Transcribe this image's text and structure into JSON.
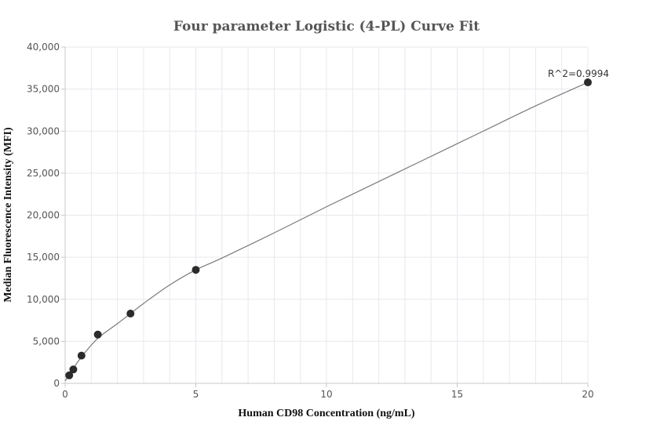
{
  "chart_data": {
    "type": "scatter",
    "title": "Four parameter Logistic (4-PL) Curve Fit",
    "xlabel": "Human CD98 Concentration (ng/mL)",
    "ylabel": "Median Fluorescence Intensity (MFI)",
    "xlim": [
      0,
      20
    ],
    "ylim": [
      0,
      40000
    ],
    "x_ticks": [
      0,
      5,
      10,
      15,
      20
    ],
    "x_tick_labels": [
      "0",
      "5",
      "10",
      "15",
      "20"
    ],
    "y_ticks": [
      0,
      5000,
      10000,
      15000,
      20000,
      25000,
      30000,
      35000,
      40000
    ],
    "y_tick_labels": [
      "0",
      "5,000",
      "10,000",
      "15,000",
      "20,000",
      "25,000",
      "30,000",
      "35,000",
      "40,000"
    ],
    "grid": true,
    "series": [
      {
        "x": [
          0.156,
          0.3125,
          0.625,
          1.25,
          2.5,
          5,
          20
        ],
        "y": [
          950,
          1650,
          3300,
          5800,
          8300,
          13500,
          35800
        ]
      }
    ],
    "fit_curve": {
      "x": [
        0,
        0.156,
        0.3125,
        0.625,
        1.25,
        2.0,
        2.5,
        3.0,
        4.0,
        5,
        6,
        8,
        10,
        12,
        14,
        16,
        18,
        20
      ],
      "y": [
        300,
        1000,
        1750,
        3150,
        5350,
        7100,
        8300,
        9500,
        11700,
        13500,
        14900,
        17900,
        21000,
        24000,
        27000,
        30000,
        33000,
        35800
      ]
    },
    "annotation": "R^2=0.9994"
  }
}
